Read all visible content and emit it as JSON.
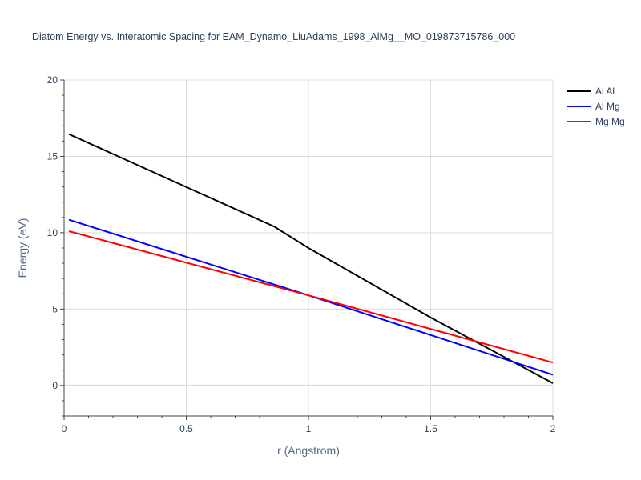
{
  "chart_data": {
    "type": "line",
    "title": "Diatom Energy vs. Interatomic Spacing for EAM_Dynamo_LiuAdams_1998_AlMg__MO_019873715786_000",
    "xlabel": "r (Angstrom)",
    "ylabel": "Energy (eV)",
    "xlim": [
      0,
      2
    ],
    "ylim": [
      -2,
      20
    ],
    "xticks": [
      0,
      0.5,
      1,
      1.5,
      2
    ],
    "xtick_labels": [
      "0",
      "0.5",
      "1",
      "1.5",
      "2"
    ],
    "yticks": [
      0,
      5,
      10,
      15,
      20
    ],
    "ytick_labels": [
      "0",
      "5",
      "10",
      "15",
      "20"
    ],
    "grid": true,
    "legend_position": "top-right",
    "series": [
      {
        "name": "Al Al",
        "color": "#000000",
        "x": [
          0.02,
          0.86,
          1.0,
          1.5,
          2.0
        ],
        "y": [
          16.45,
          10.4,
          9.0,
          4.45,
          0.15
        ]
      },
      {
        "name": "Al Mg",
        "color": "#0000ff",
        "x": [
          0.02,
          1.0,
          2.0
        ],
        "y": [
          10.85,
          5.9,
          0.7
        ]
      },
      {
        "name": "Mg Mg",
        "color": "#ff0000",
        "x": [
          0.02,
          1.0,
          2.0
        ],
        "y": [
          10.1,
          5.9,
          1.5
        ]
      }
    ]
  }
}
